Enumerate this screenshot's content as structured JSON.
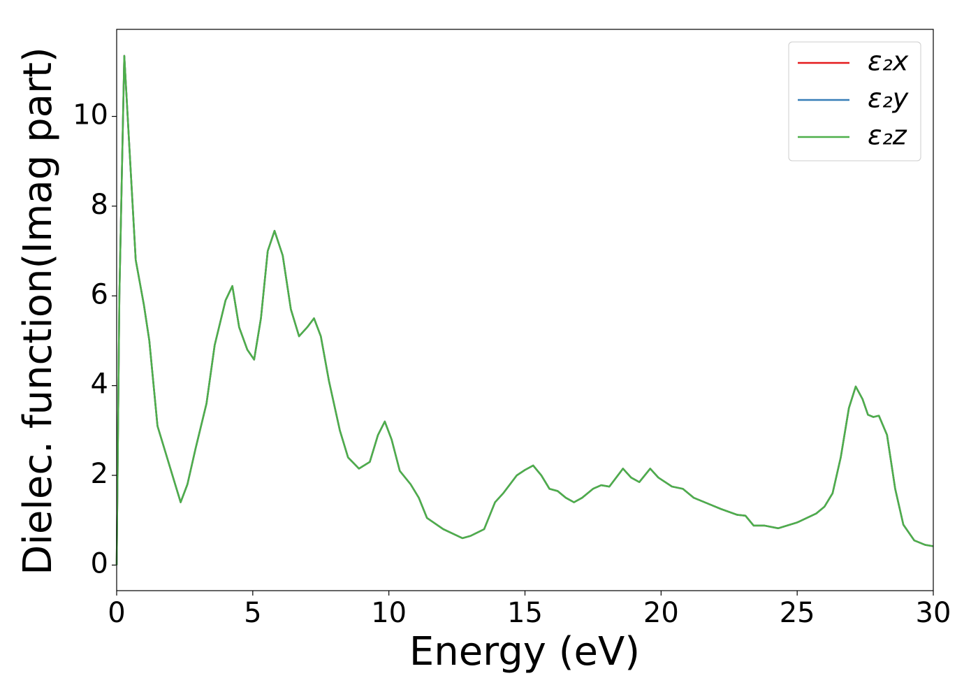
{
  "chart_data": {
    "type": "line",
    "xlabel": "Energy (eV)",
    "ylabel": "Dielec. function(Imag part)",
    "x": [
      0,
      0.1,
      0.28,
      0.45,
      0.7,
      1.0,
      1.2,
      1.5,
      1.8,
      2.1,
      2.35,
      2.6,
      2.9,
      3.3,
      3.6,
      4.0,
      4.25,
      4.5,
      4.8,
      5.05,
      5.3,
      5.55,
      5.8,
      6.1,
      6.4,
      6.7,
      7.0,
      7.25,
      7.5,
      7.8,
      8.2,
      8.5,
      8.9,
      9.3,
      9.6,
      9.85,
      10.1,
      10.4,
      10.8,
      11.1,
      11.4,
      12.0,
      12.7,
      13.0,
      13.5,
      13.9,
      14.2,
      14.7,
      15.0,
      15.3,
      15.6,
      15.9,
      16.2,
      16.5,
      16.8,
      17.1,
      17.5,
      17.8,
      18.1,
      18.6,
      18.9,
      19.2,
      19.6,
      19.9,
      20.4,
      20.8,
      21.2,
      21.8,
      22.2,
      22.8,
      23.1,
      23.4,
      23.8,
      24.3,
      25.0,
      25.7,
      26.0,
      26.3,
      26.6,
      26.9,
      27.15,
      27.4,
      27.6,
      27.8,
      28.0,
      28.3,
      28.6,
      28.9,
      29.3,
      29.7,
      30
    ],
    "series": [
      {
        "name": "ε₂x",
        "color": "#e41a1c",
        "values": [
          0,
          6,
          11.35,
          9.5,
          6.8,
          5.8,
          5.0,
          3.1,
          2.5,
          1.9,
          1.4,
          1.8,
          2.6,
          3.6,
          4.9,
          5.9,
          6.22,
          5.3,
          4.8,
          4.58,
          5.5,
          7.0,
          7.45,
          6.9,
          5.7,
          5.1,
          5.3,
          5.5,
          5.1,
          4.1,
          3.0,
          2.4,
          2.15,
          2.3,
          2.9,
          3.2,
          2.8,
          2.1,
          1.8,
          1.5,
          1.05,
          0.8,
          0.6,
          0.65,
          0.8,
          1.4,
          1.6,
          2.0,
          2.12,
          2.22,
          2.0,
          1.7,
          1.65,
          1.5,
          1.4,
          1.5,
          1.7,
          1.78,
          1.75,
          2.15,
          1.95,
          1.85,
          2.15,
          1.95,
          1.75,
          1.7,
          1.5,
          1.35,
          1.25,
          1.12,
          1.1,
          0.88,
          0.88,
          0.82,
          0.95,
          1.15,
          1.3,
          1.6,
          2.4,
          3.5,
          3.98,
          3.7,
          3.35,
          3.3,
          3.33,
          2.9,
          1.7,
          0.9,
          0.55,
          0.45,
          0.42
        ]
      },
      {
        "name": "ε₂y",
        "color": "#377eb8",
        "values": [
          0,
          6,
          11.35,
          9.5,
          6.8,
          5.8,
          5.0,
          3.1,
          2.5,
          1.9,
          1.4,
          1.8,
          2.6,
          3.6,
          4.9,
          5.9,
          6.22,
          5.3,
          4.8,
          4.58,
          5.5,
          7.0,
          7.45,
          6.9,
          5.7,
          5.1,
          5.3,
          5.5,
          5.1,
          4.1,
          3.0,
          2.4,
          2.15,
          2.3,
          2.9,
          3.2,
          2.8,
          2.1,
          1.8,
          1.5,
          1.05,
          0.8,
          0.6,
          0.65,
          0.8,
          1.4,
          1.6,
          2.0,
          2.12,
          2.22,
          2.0,
          1.7,
          1.65,
          1.5,
          1.4,
          1.5,
          1.7,
          1.78,
          1.75,
          2.15,
          1.95,
          1.85,
          2.15,
          1.95,
          1.75,
          1.7,
          1.5,
          1.35,
          1.25,
          1.12,
          1.1,
          0.88,
          0.88,
          0.82,
          0.95,
          1.15,
          1.3,
          1.6,
          2.4,
          3.5,
          3.98,
          3.7,
          3.35,
          3.3,
          3.33,
          2.9,
          1.7,
          0.9,
          0.55,
          0.45,
          0.42
        ]
      },
      {
        "name": "ε₂z",
        "color": "#4daf4a",
        "values": [
          0,
          6,
          11.35,
          9.5,
          6.8,
          5.8,
          5.0,
          3.1,
          2.5,
          1.9,
          1.4,
          1.8,
          2.6,
          3.6,
          4.9,
          5.9,
          6.22,
          5.3,
          4.8,
          4.58,
          5.5,
          7.0,
          7.45,
          6.9,
          5.7,
          5.1,
          5.3,
          5.5,
          5.1,
          4.1,
          3.0,
          2.4,
          2.15,
          2.3,
          2.9,
          3.2,
          2.8,
          2.1,
          1.8,
          1.5,
          1.05,
          0.8,
          0.6,
          0.65,
          0.8,
          1.4,
          1.6,
          2.0,
          2.12,
          2.22,
          2.0,
          1.7,
          1.65,
          1.5,
          1.4,
          1.5,
          1.7,
          1.78,
          1.75,
          2.15,
          1.95,
          1.85,
          2.15,
          1.95,
          1.75,
          1.7,
          1.5,
          1.35,
          1.25,
          1.12,
          1.1,
          0.88,
          0.88,
          0.82,
          0.95,
          1.15,
          1.3,
          1.6,
          2.4,
          3.5,
          3.98,
          3.7,
          3.35,
          3.3,
          3.33,
          2.9,
          1.7,
          0.9,
          0.55,
          0.45,
          0.42
        ]
      }
    ],
    "xlim": [
      0,
      30
    ],
    "xticks": [
      0,
      5,
      10,
      15,
      20,
      25,
      30
    ],
    "ylim": [
      -0.57,
      11.94
    ],
    "yticks": [
      0,
      2,
      4,
      6,
      8,
      10
    ],
    "grid": false,
    "legend": "upper right"
  }
}
